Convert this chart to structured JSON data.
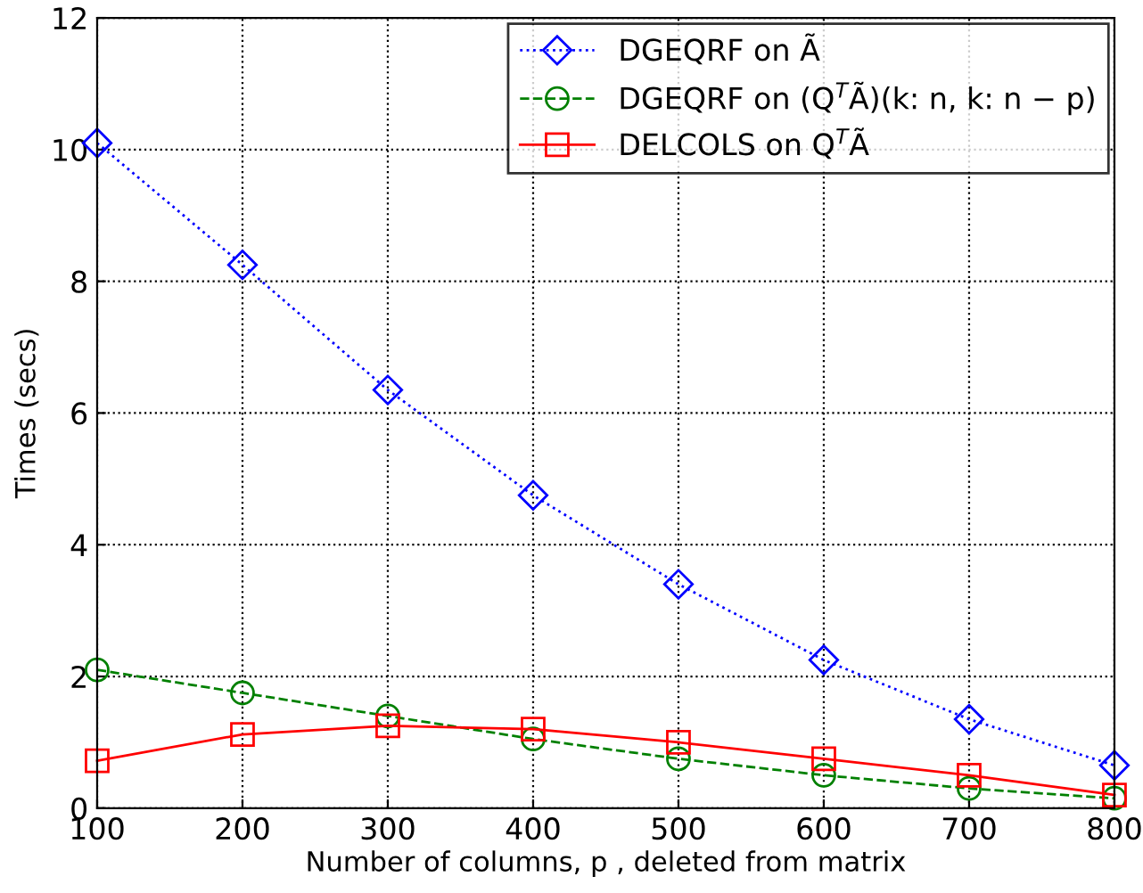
{
  "chart_data": {
    "type": "line",
    "xlabel": "Number of columns, p , deleted from matrix",
    "ylabel": "Times (secs)",
    "x": [
      100,
      200,
      300,
      400,
      500,
      600,
      700,
      800
    ],
    "series": [
      {
        "name": "DGEQRF on Ã",
        "color": "#0000ff",
        "marker": "diamond",
        "line_style": "dotted",
        "values": [
          10.1,
          8.25,
          6.35,
          4.75,
          3.4,
          2.25,
          1.35,
          0.65
        ]
      },
      {
        "name": "DGEQRF on (Q$^{T}$Ã)(k: n, k: n − p)",
        "color": "#008000",
        "marker": "circle",
        "line_style": "dashed",
        "values": [
          2.1,
          1.75,
          1.4,
          1.05,
          0.75,
          0.5,
          0.3,
          0.15
        ]
      },
      {
        "name": "DELCOLS on Q$^{T}$Ã",
        "color": "#ff0000",
        "marker": "square",
        "line_style": "solid",
        "values": [
          0.72,
          1.12,
          1.25,
          1.2,
          1.0,
          0.75,
          0.5,
          0.2
        ]
      }
    ],
    "xlim": [
      100,
      800
    ],
    "xticks": [
      100,
      200,
      300,
      400,
      500,
      600,
      700,
      800
    ],
    "ylim": [
      0,
      12
    ],
    "yticks": [
      0,
      2,
      4,
      6,
      8,
      10,
      12
    ],
    "grid": true,
    "legend": "top right"
  }
}
